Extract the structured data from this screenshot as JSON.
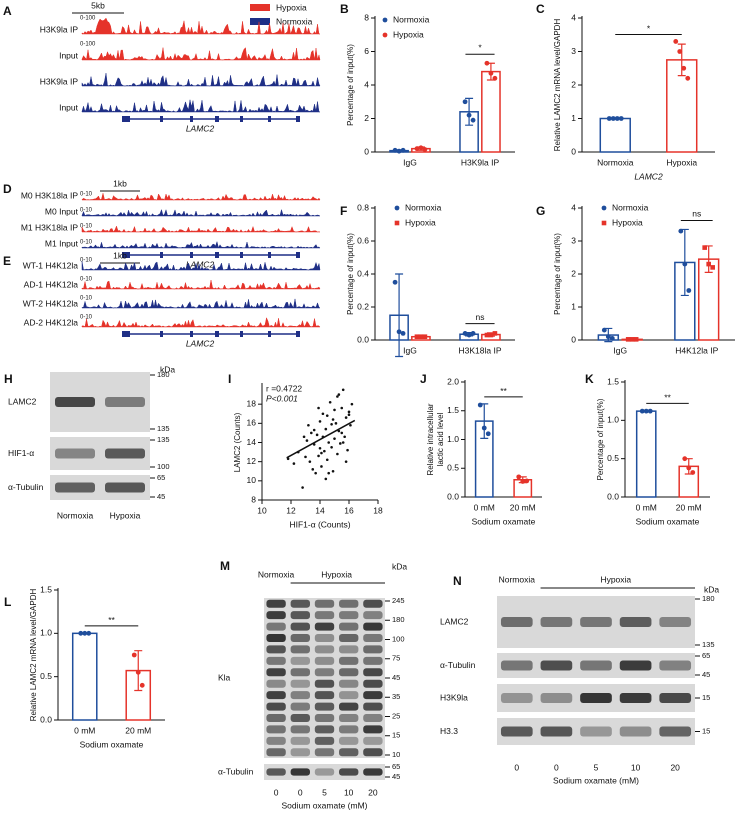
{
  "chart_data": [
    {
      "type": "grouped_bar",
      "label": "B",
      "ylabel": "Percentage of input(%)",
      "categories": [
        "IgG",
        "H3K9la IP"
      ],
      "series": [
        {
          "name": "Normoxia",
          "color": "#1f4e9c",
          "marker": "circle",
          "values": [
            0.08,
            2.4
          ],
          "errors": [
            0.05,
            0.8
          ],
          "points": [
            [
              0.1,
              0.05,
              0.1
            ],
            [
              3.0,
              2.2,
              1.9
            ]
          ]
        },
        {
          "name": "Hypoxia",
          "color": "#e5332a",
          "marker": "circle",
          "values": [
            0.2,
            4.8
          ],
          "errors": [
            0.1,
            0.5
          ],
          "points": [
            [
              0.2,
              0.25,
              0.15
            ],
            [
              5.3,
              4.7,
              4.4
            ]
          ]
        }
      ],
      "ylim": [
        0,
        8
      ],
      "yticks": [
        0,
        2,
        4,
        6,
        8
      ],
      "legend": "top-left",
      "significance": "*"
    },
    {
      "type": "bar",
      "label": "C",
      "ylabel": "Relative LAMC2 mRNA level/GAPDH",
      "xlabel": "LAMC2",
      "categories": [
        "Normoxia",
        "Hypoxia"
      ],
      "values": [
        1.0,
        2.75
      ],
      "errors": [
        0.02,
        0.47
      ],
      "points": [
        [
          1,
          1,
          1,
          1
        ],
        [
          3.3,
          3.0,
          2.5,
          2.2
        ]
      ],
      "colors": [
        "#1f4e9c",
        "#e5332a"
      ],
      "ylim": [
        0,
        4
      ],
      "yticks": [
        0,
        1,
        2,
        3,
        4
      ],
      "significance": "*"
    },
    {
      "type": "grouped_bar",
      "label": "F",
      "ylabel": "Percentage of input(%)",
      "categories": [
        "IgG",
        "H3K18la IP"
      ],
      "series": [
        {
          "name": "Normoxia",
          "color": "#1f4e9c",
          "marker": "circle",
          "values": [
            0.15,
            0.035
          ],
          "errors": [
            0.25,
            0.01
          ],
          "points": [
            [
              0.35,
              0.05,
              0.04
            ],
            [
              0.04,
              0.03,
              0.04
            ]
          ]
        },
        {
          "name": "Hypoxia",
          "color": "#e5332a",
          "marker": "square",
          "values": [
            0.02,
            0.033
          ],
          "errors": [
            0.005,
            0.01
          ],
          "points": [
            [
              0.02,
              0.02,
              0.02
            ],
            [
              0.03,
              0.03,
              0.04
            ]
          ]
        }
      ],
      "ylim": [
        0,
        0.8
      ],
      "yticks": [
        {
          "value": 0,
          "label": "0.0"
        },
        0.2,
        0.4,
        0.6,
        0.8
      ],
      "legend": "top",
      "significance": "ns"
    },
    {
      "type": "grouped_bar",
      "label": "G",
      "ylabel": "Percentage of input(%)",
      "categories": [
        "IgG",
        "H4K12la IP"
      ],
      "series": [
        {
          "name": "Normoxia",
          "color": "#1f4e9c",
          "marker": "circle",
          "values": [
            0.15,
            2.35
          ],
          "errors": [
            0.2,
            1.0
          ],
          "points": [
            [
              0.3,
              0.1,
              0.05
            ],
            [
              3.3,
              2.3,
              1.5
            ]
          ]
        },
        {
          "name": "Hypoxia",
          "color": "#e5332a",
          "marker": "square",
          "values": [
            0.02,
            2.45
          ],
          "errors": [
            0.01,
            0.4
          ],
          "points": [
            [
              0.02,
              0.02,
              0.02
            ],
            [
              2.8,
              2.3,
              2.2
            ]
          ]
        }
      ],
      "ylim": [
        0,
        4
      ],
      "yticks": [
        0,
        1,
        2,
        3,
        4
      ],
      "legend": "top",
      "significance": "ns"
    },
    {
      "type": "scatter",
      "label": "I",
      "xlabel": "HIF1-α (Counts)",
      "ylabel": "LAMC2 (Counts)",
      "annotations": [
        "r =0.4722",
        "P<0.001"
      ],
      "x": [
        11.8,
        12.2,
        12.5,
        12.8,
        13.0,
        13.1,
        13.3,
        13.4,
        13.5,
        13.6,
        13.7,
        13.8,
        13.9,
        14.0,
        14.0,
        14.1,
        14.2,
        14.2,
        14.3,
        14.4,
        14.5,
        14.5,
        14.6,
        14.7,
        14.8,
        14.8,
        14.9,
        15.0,
        15.0,
        15.1,
        15.2,
        15.2,
        15.3,
        15.4,
        15.5,
        15.5,
        15.6,
        15.7,
        15.8,
        15.9,
        16.0,
        16.1,
        16.2,
        13.2,
        13.9,
        14.6,
        15.3,
        14.4,
        15.8,
        12.9,
        14.9,
        15.6,
        13.6,
        14.1,
        16.0
      ],
      "y": [
        12.3,
        11.8,
        13.0,
        9.3,
        12.5,
        14.2,
        12.0,
        15.0,
        11.2,
        13.8,
        10.8,
        14.8,
        12.6,
        16.2,
        13.4,
        11.5,
        14.6,
        17.0,
        13.1,
        15.4,
        12.2,
        16.8,
        14.0,
        18.2,
        13.5,
        15.9,
        11.0,
        17.4,
        14.4,
        16.0,
        12.8,
        18.8,
        15.2,
        13.9,
        17.6,
        15.0,
        19.5,
        14.6,
        16.6,
        13.2,
        17.2,
        15.8,
        18.0,
        15.8,
        17.6,
        10.8,
        19.0,
        10.2,
        12.0,
        14.6,
        16.4,
        14.0,
        15.3,
        12.9,
        16.9
      ],
      "fit": {
        "x": [
          11.7,
          16.4
        ],
        "y": [
          12.4,
          16.3
        ]
      },
      "color": "#111111",
      "xlim": [
        10,
        18
      ],
      "xticks": [
        10,
        12,
        14,
        16,
        18
      ],
      "ylim": [
        8,
        20
      ],
      "yticks": [
        8,
        10,
        12,
        14,
        16,
        18
      ]
    },
    {
      "type": "bar",
      "label": "J",
      "ylabel": [
        "Relative  intracellular",
        "lactic acid level"
      ],
      "xlabel": "Sodium oxamate",
      "categories": [
        "0 mM",
        "20 mM"
      ],
      "values": [
        1.32,
        0.3
      ],
      "errors": [
        0.3,
        0.05
      ],
      "points": [
        [
          1.6,
          1.2,
          1.1
        ],
        [
          0.35,
          0.27,
          0.28
        ]
      ],
      "colors": [
        "#1f4e9c",
        "#e5332a"
      ],
      "ylim": [
        0,
        2.0
      ],
      "yticks": [
        {
          "value": 0,
          "label": "0.0"
        },
        0.5,
        {
          "value": 1,
          "label": "1.0"
        },
        1.5,
        {
          "value": 2,
          "label": "2.0"
        }
      ],
      "significance": "**"
    },
    {
      "type": "bar",
      "label": "K",
      "ylabel": "Percentage of input(%)",
      "xlabel": "Sodium oxamate",
      "categories": [
        "0 mM",
        "20 mM"
      ],
      "values": [
        1.12,
        0.4
      ],
      "errors": [
        0.01,
        0.1
      ],
      "points": [
        [
          1.12,
          1.12,
          1.12
        ],
        [
          0.5,
          0.38,
          0.32
        ]
      ],
      "colors": [
        "#1f4e9c",
        "#e5332a"
      ],
      "ylim": [
        0,
        1.5
      ],
      "yticks": [
        {
          "value": 0,
          "label": "0.0"
        },
        0.5,
        {
          "value": 1,
          "label": "1.0"
        },
        1.5
      ],
      "significance": "**"
    },
    {
      "type": "bar",
      "label": "L",
      "ylabel": "Relative LAMC2 mRNA level/GAPDH",
      "xlabel": "Sodium oxamate",
      "categories": [
        "0 mM",
        "20 mM"
      ],
      "values": [
        1.0,
        0.57
      ],
      "errors": [
        0.005,
        0.23
      ],
      "points": [
        [
          1,
          1,
          1
        ],
        [
          0.75,
          0.55,
          0.4
        ]
      ],
      "colors": [
        "#1f4e9c",
        "#e5332a"
      ],
      "ylim": [
        0,
        1.5
      ],
      "yticks": [
        {
          "value": 0,
          "label": "0.0"
        },
        0.5,
        {
          "value": 1,
          "label": "1.0"
        },
        1.5
      ],
      "significance": "**"
    }
  ],
  "tracks": [
    {
      "label": "A",
      "scalebar": "5kb",
      "gene": "LAMC2",
      "legend": [
        {
          "name": "Hypoxia",
          "color": "#e5332a"
        },
        {
          "name": "Normoxia",
          "color": "#1f2f86"
        }
      ],
      "rows": [
        {
          "name": "H3K9la IP",
          "range": "0-100",
          "color": "#e5332a"
        },
        {
          "name": "Input",
          "range": "0-100",
          "color": "#e5332a"
        },
        {
          "name": "H3K9la IP",
          "color": "#1f2f86"
        },
        {
          "name": "Input",
          "color": "#1f2f86"
        }
      ]
    },
    {
      "label": "D",
      "scalebar": "1kb",
      "gene": "LAMC2",
      "rows": [
        {
          "name": "M0 H3K18la IP",
          "range": "0-10",
          "color": "#e5332a"
        },
        {
          "name": "M0 Input",
          "range": "0-10",
          "color": "#1f2f86"
        },
        {
          "name": "M1 H3K18la IP",
          "range": "0-10",
          "color": "#e5332a"
        },
        {
          "name": "M1 Input",
          "range": "0-10",
          "color": "#1f2f86"
        }
      ]
    },
    {
      "label": "E",
      "scalebar": "1kb",
      "gene": "LAMC2",
      "rows": [
        {
          "name": "WT-1 H4K12la",
          "range": "0-10",
          "color": "#1f2f86"
        },
        {
          "name": "AD-1 H4K12la",
          "range": "0-10",
          "color": "#e5332a"
        },
        {
          "name": "WT-2 H4K12la",
          "range": "0-10",
          "color": "#1f2f86"
        },
        {
          "name": "AD-2 H4K12la",
          "range": "0-10",
          "color": "#e5332a"
        }
      ]
    }
  ],
  "blots": [
    {
      "label": "H",
      "unit": "kDa",
      "lanes": [
        "Normoxia",
        "Hypoxia"
      ],
      "rows": [
        {
          "name": "LAMC2",
          "markers": [
            180,
            135
          ]
        },
        {
          "name": "HIF1-α",
          "markers": [
            135,
            100
          ]
        },
        {
          "name": "α-Tubulin",
          "markers": [
            65,
            45
          ]
        }
      ]
    },
    {
      "label": "M",
      "unit": "kDa",
      "groups": [
        "Normoxia",
        "Hypoxia"
      ],
      "lanes": [
        "0",
        "0",
        "5",
        "10",
        "20"
      ],
      "xlabel": "Sodium oxamate (mM)",
      "rows": [
        {
          "name": "Kla",
          "markers": [
            245,
            180,
            100,
            75,
            45,
            35,
            25,
            15,
            10
          ]
        },
        {
          "name": "α-Tubulin",
          "markers": [
            65,
            45
          ]
        }
      ]
    },
    {
      "label": "N",
      "unit": "kDa",
      "groups": [
        "Normoxia",
        "Hypoxia"
      ],
      "lanes": [
        "0",
        "0",
        "5",
        "10",
        "20"
      ],
      "xlabel": "Sodium oxamate (mM)",
      "rows": [
        {
          "name": "LAMC2",
          "markers": [
            180,
            135
          ]
        },
        {
          "name": "α-Tubulin",
          "markers": [
            65,
            45
          ]
        },
        {
          "name": "H3K9la",
          "markers": [
            15
          ]
        },
        {
          "name": "H3.3",
          "markers": [
            15
          ]
        }
      ]
    }
  ]
}
